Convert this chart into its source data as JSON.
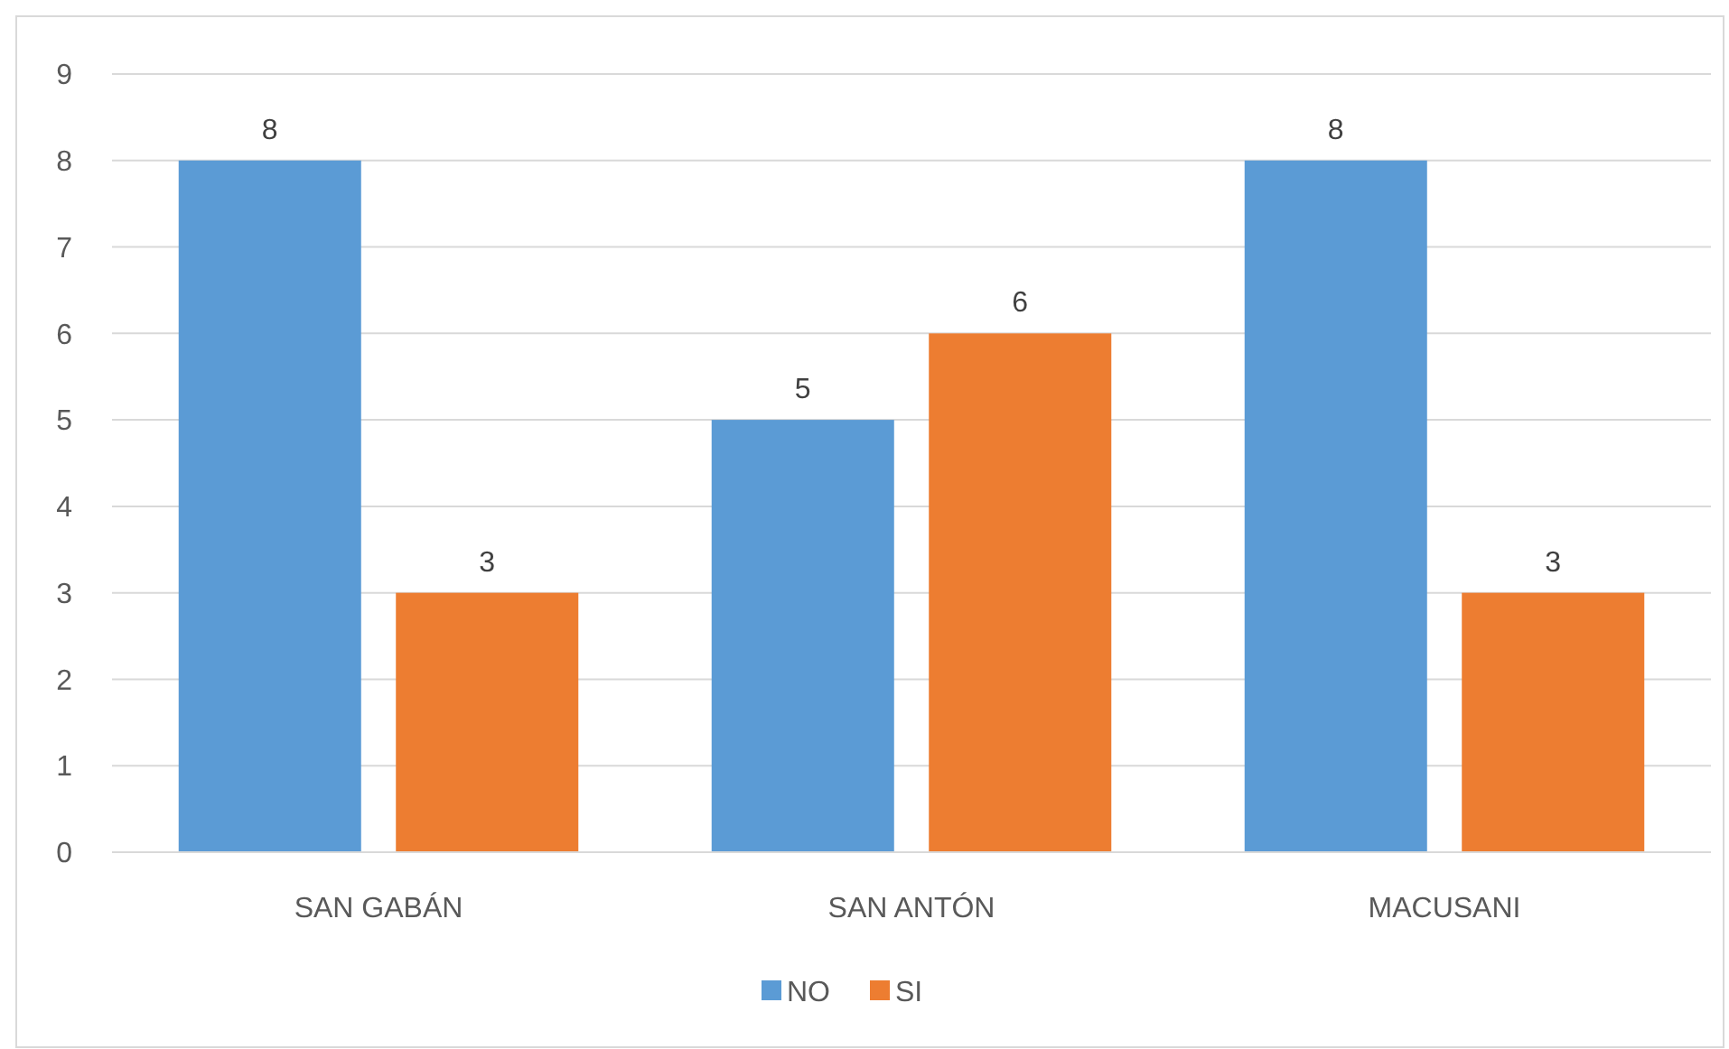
{
  "chart_data": {
    "type": "bar",
    "categories": [
      "SAN GABÁN",
      "SAN ANTÓN",
      "MACUSANI"
    ],
    "series": [
      {
        "name": "NO",
        "color": "#5b9bd5",
        "values": [
          8,
          5,
          8
        ]
      },
      {
        "name": "SI",
        "color": "#ed7d31",
        "values": [
          3,
          6,
          3
        ]
      }
    ],
    "ylim": [
      0,
      9
    ],
    "yticks": [
      0,
      1,
      2,
      3,
      4,
      5,
      6,
      7,
      8,
      9
    ],
    "grid": "y",
    "legend": "bottom",
    "data_labels": true
  }
}
